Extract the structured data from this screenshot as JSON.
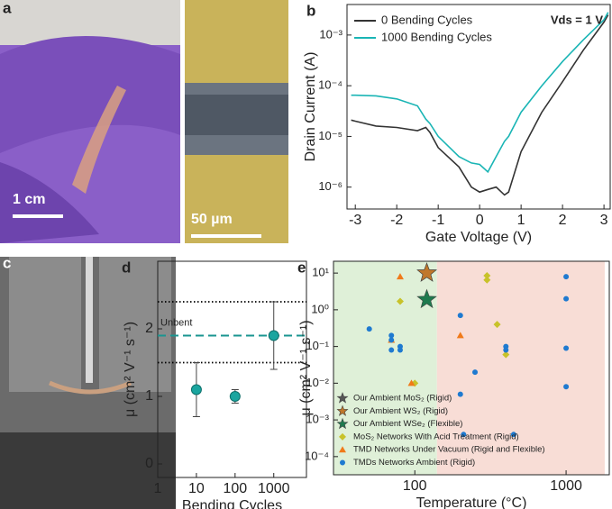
{
  "images": [
    {
      "panel": "a",
      "scalebar": "1 cm"
    },
    {
      "scalebar": "50 µm"
    },
    {
      "panel": "c"
    }
  ],
  "chart_data": [
    {
      "type": "line",
      "panel": "b",
      "x_label": "Gate Voltage (V)",
      "y_label": "Drain Current (A)",
      "annotation": "Vds = 1 V",
      "log_y": true,
      "xlim": [
        -3.2,
        3.15
      ],
      "ylim": [
        3.7e-07,
        0.004
      ],
      "xticks": [
        -3,
        -2,
        -1,
        0,
        1,
        2,
        3
      ],
      "yticks": [
        {
          "value": 1e-06,
          "label": "10⁻⁶"
        },
        {
          "value": 1e-05,
          "label": "10⁻⁵"
        },
        {
          "value": 0.0001,
          "label": "10⁻⁴"
        },
        {
          "value": 0.001,
          "label": "10⁻³"
        }
      ],
      "x": [
        -3.1,
        -3,
        -2.5,
        -2,
        -1.5,
        -1.3,
        -1.2,
        -1,
        -0.5,
        -0.2,
        0,
        0.2,
        0.4,
        0.6,
        0.7,
        1,
        1.5,
        2,
        2.5,
        3,
        3.1
      ],
      "series": [
        {
          "name": "0 Bending Cycles",
          "color": "#333333",
          "values": [
            2.1e-05,
            2e-05,
            1.6e-05,
            1.5e-05,
            1.3e-05,
            1.5e-05,
            1.2e-05,
            6e-06,
            2.5e-06,
            1e-06,
            8e-07,
            9e-07,
            1e-06,
            7e-07,
            8e-07,
            5e-06,
            3e-05,
            0.00012,
            0.0005,
            0.0018,
            0.0025
          ]
        },
        {
          "name": "1000 Bending Cycles",
          "color": "#1ab5b5",
          "values": [
            6.5e-05,
            6.5e-05,
            6.3e-05,
            5.5e-05,
            4e-05,
            2.2e-05,
            1.8e-05,
            1e-05,
            4e-06,
            3e-06,
            2.8e-06,
            2e-06,
            4e-06,
            8e-06,
            1e-05,
            3e-05,
            0.0001,
            0.0003,
            0.0008,
            0.002,
            0.0028
          ]
        }
      ]
    },
    {
      "type": "errorbar",
      "panel": "d",
      "x_label": "Bending Cycles",
      "y_label": "μ (cm² V⁻¹ s⁻¹)",
      "log_x": true,
      "xlim": [
        1,
        7000
      ],
      "ylim": [
        -0.2,
        3
      ],
      "xticks": [
        1,
        10,
        100,
        1000
      ],
      "yticks": [
        0,
        1,
        2
      ],
      "x": [
        10,
        100,
        1000
      ],
      "values": [
        1.1,
        1.0,
        1.9
      ],
      "errors": [
        0.4,
        0.1,
        0.5
      ],
      "color": "#1aa59f",
      "hlines": [
        {
          "value": 2.4,
          "style": "dotted",
          "color": "#000000"
        },
        {
          "value": 1.9,
          "style": "dashed",
          "color": "#1a9590",
          "label": "Unbent"
        },
        {
          "value": 1.5,
          "style": "dotted",
          "color": "#000000"
        }
      ]
    },
    {
      "type": "scatter",
      "panel": "e",
      "x_label": "Temperature (°C)",
      "y_label": "μ (cm² V⁻¹ s⁻¹)",
      "log_x": true,
      "log_y": true,
      "xlim": [
        29,
        1930
      ],
      "ylim": [
        3.2e-05,
        21
      ],
      "xticks": [
        100,
        1000
      ],
      "yticks": [
        {
          "value": 0.0001,
          "label": "10⁻⁴"
        },
        {
          "value": 0.001,
          "label": "10⁻³"
        },
        {
          "value": 0.01,
          "label": "10⁻²"
        },
        {
          "value": 0.1,
          "label": "10⁻¹"
        },
        {
          "value": 1,
          "label": "10⁰"
        },
        {
          "value": 10,
          "label": "10¹"
        }
      ],
      "regions": [
        {
          "x": [
            29,
            140
          ],
          "color": "#dff0d8"
        },
        {
          "x": [
            140,
            1800
          ],
          "color": "#f8ddd6"
        }
      ],
      "series": [
        {
          "name": "Our Ambient MoS₂ (Rigid)",
          "color": "#555555",
          "marker": "star",
          "x": [
            120
          ],
          "values": [
            10
          ]
        },
        {
          "name": "Our Ambient WS₂ (Rigid)",
          "color": "#c0772a",
          "marker": "star",
          "x": [
            120
          ],
          "values": [
            10
          ]
        },
        {
          "name": "Our Ambient WSe₂ (Flexible)",
          "color": "#1e7a4e",
          "marker": "star",
          "x": [
            120
          ],
          "values": [
            1.9
          ]
        },
        {
          "name": "MoS₂ Networks With Acid Treatment (Rigid)",
          "color": "#c8c22a",
          "marker": "diamond",
          "x": [
            80,
            300,
            300,
            350,
            400,
            100
          ],
          "values": [
            1.7,
            8.5,
            6.5,
            0.4,
            0.06,
            0.01
          ]
        },
        {
          "name": "TMD Networks Under Vacuum (Rigid and Flexible)",
          "color": "#f07a1a",
          "marker": "triangle",
          "x": [
            80,
            70,
            200,
            95
          ],
          "values": [
            8,
            0.15,
            0.2,
            0.01
          ]
        },
        {
          "name": "TMDs Networks Ambient (Rigid)",
          "color": "#1f7ad0",
          "marker": "circle",
          "x": [
            50,
            70,
            70,
            70,
            80,
            80,
            200,
            200,
            250,
            400,
            400,
            1000,
            1000,
            1000,
            1000,
            210,
            450
          ],
          "values": [
            0.3,
            0.2,
            0.15,
            0.08,
            0.1,
            0.08,
            0.7,
            0.005,
            0.02,
            0.1,
            0.08,
            8,
            2,
            0.09,
            0.008,
            0.0004,
            0.0004
          ]
        }
      ]
    }
  ]
}
